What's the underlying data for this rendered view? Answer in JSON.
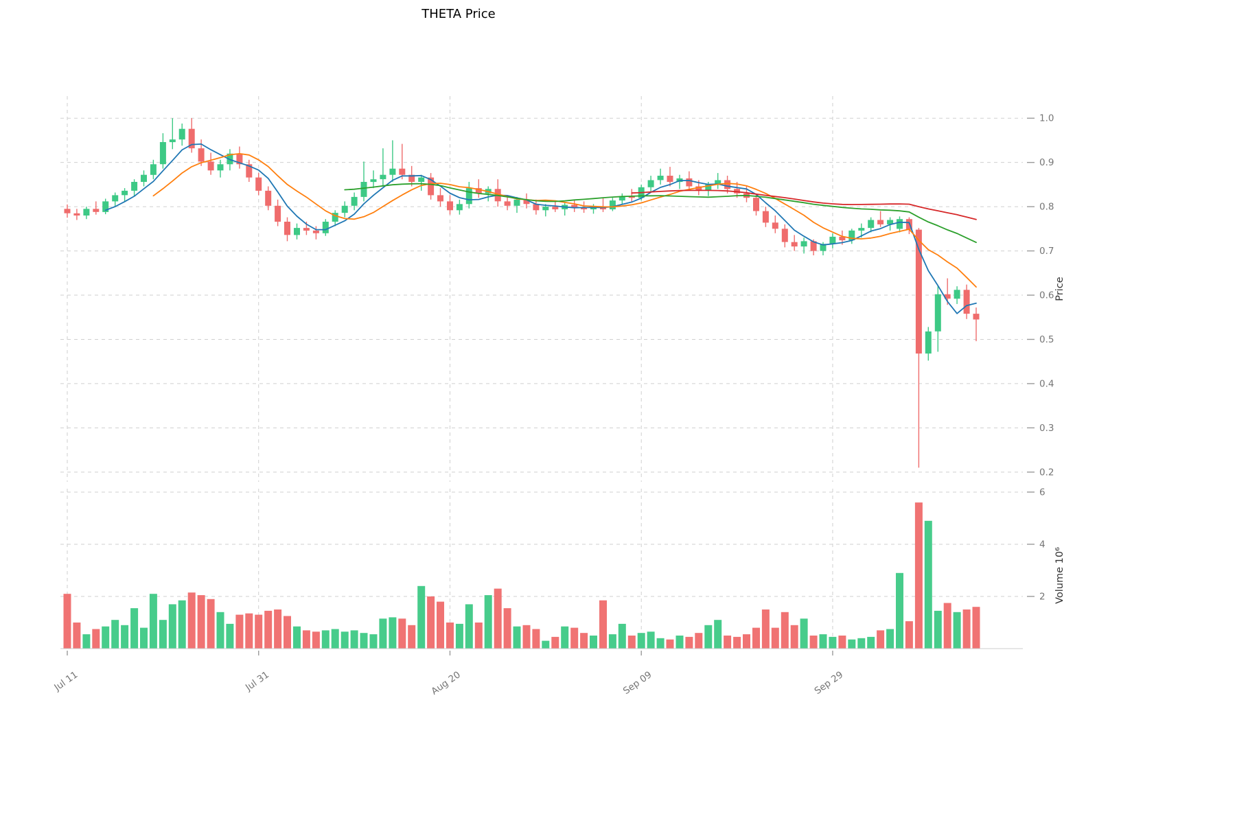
{
  "title": "THETA Price",
  "colors": {
    "up": "#3dc985",
    "down": "#ef6c6c",
    "grid": "#cfcfcf",
    "tick_text": "#757575",
    "tick_mark": "#9a9a9a",
    "axis_text": "#333333",
    "background": "#ffffff",
    "ma_blue": "#1f77b4",
    "ma_orange": "#ff7f0e",
    "ma_green": "#2ca02c",
    "ma_red": "#d62728"
  },
  "axes": {
    "price_label": "Price",
    "volume_label": "Volume",
    "volume_scale_label": "10⁶",
    "price_ticks": [
      "1.0",
      "0.9",
      "0.8",
      "0.7",
      "0.6",
      "0.5",
      "0.4",
      "0.3",
      "0.2"
    ],
    "volume_ticks": [
      "6",
      "4",
      "2"
    ]
  },
  "x_ticks": [
    {
      "index": 0,
      "label": "Jul 11"
    },
    {
      "index": 20,
      "label": "Jul 31"
    },
    {
      "index": 40,
      "label": "Aug 20"
    },
    {
      "index": 60,
      "label": "Sep 09"
    },
    {
      "index": 80,
      "label": "Sep 29"
    }
  ],
  "chart_data": {
    "type": "candlestick_with_volume",
    "title": "THETA Price",
    "price_axis_range": [
      0.178,
      1.05
    ],
    "volume_axis_range": [
      0,
      6.13
    ],
    "volume_unit_label": "10⁶",
    "moving_averages": [
      {
        "name": "SMA5",
        "window": 5,
        "color": "#1f77b4"
      },
      {
        "name": "SMA10",
        "window": 10,
        "color": "#ff7f0e"
      },
      {
        "name": "SMA30",
        "window": 30,
        "color": "#2ca02c"
      },
      {
        "name": "SMA60",
        "window": 60,
        "color": "#d62728"
      }
    ],
    "candles": {
      "fields": [
        "open",
        "high",
        "low",
        "close",
        "volume_millions"
      ],
      "rows": [
        [
          0.795,
          0.805,
          0.775,
          0.785,
          2.1
        ],
        [
          0.785,
          0.795,
          0.77,
          0.78,
          1.0
        ],
        [
          0.78,
          0.8,
          0.772,
          0.795,
          0.55
        ],
        [
          0.795,
          0.812,
          0.782,
          0.788,
          0.75
        ],
        [
          0.788,
          0.818,
          0.783,
          0.812,
          0.85
        ],
        [
          0.812,
          0.832,
          0.8,
          0.826,
          1.1
        ],
        [
          0.826,
          0.842,
          0.812,
          0.836,
          0.9
        ],
        [
          0.836,
          0.862,
          0.824,
          0.856,
          1.55
        ],
        [
          0.856,
          0.882,
          0.846,
          0.872,
          0.8
        ],
        [
          0.872,
          0.906,
          0.862,
          0.896,
          2.1
        ],
        [
          0.896,
          0.966,
          0.886,
          0.946,
          1.1
        ],
        [
          0.946,
          1.0,
          0.93,
          0.952,
          1.7
        ],
        [
          0.952,
          0.988,
          0.938,
          0.976,
          1.85
        ],
        [
          0.976,
          1.0,
          0.922,
          0.932,
          2.15
        ],
        [
          0.932,
          0.952,
          0.892,
          0.902,
          2.05
        ],
        [
          0.902,
          0.922,
          0.872,
          0.882,
          1.9
        ],
        [
          0.882,
          0.906,
          0.866,
          0.896,
          1.4
        ],
        [
          0.896,
          0.93,
          0.882,
          0.92,
          0.95
        ],
        [
          0.92,
          0.936,
          0.886,
          0.896,
          1.3
        ],
        [
          0.896,
          0.906,
          0.856,
          0.866,
          1.35
        ],
        [
          0.866,
          0.876,
          0.826,
          0.836,
          1.3
        ],
        [
          0.836,
          0.846,
          0.792,
          0.802,
          1.45
        ],
        [
          0.802,
          0.816,
          0.756,
          0.766,
          1.5
        ],
        [
          0.766,
          0.776,
          0.722,
          0.736,
          1.25
        ],
        [
          0.736,
          0.762,
          0.726,
          0.752,
          0.85
        ],
        [
          0.752,
          0.766,
          0.736,
          0.746,
          0.7
        ],
        [
          0.746,
          0.756,
          0.726,
          0.74,
          0.65
        ],
        [
          0.74,
          0.772,
          0.734,
          0.766,
          0.7
        ],
        [
          0.766,
          0.792,
          0.756,
          0.786,
          0.75
        ],
        [
          0.786,
          0.812,
          0.776,
          0.802,
          0.65
        ],
        [
          0.802,
          0.832,
          0.792,
          0.822,
          0.7
        ],
        [
          0.822,
          0.902,
          0.812,
          0.856,
          0.6
        ],
        [
          0.856,
          0.882,
          0.842,
          0.862,
          0.55
        ],
        [
          0.862,
          0.932,
          0.846,
          0.872,
          1.15
        ],
        [
          0.872,
          0.95,
          0.856,
          0.886,
          1.2
        ],
        [
          0.886,
          0.942,
          0.862,
          0.872,
          1.15
        ],
        [
          0.872,
          0.892,
          0.846,
          0.856,
          0.9
        ],
        [
          0.856,
          0.872,
          0.836,
          0.866,
          2.4
        ],
        [
          0.866,
          0.876,
          0.816,
          0.826,
          2.0
        ],
        [
          0.826,
          0.842,
          0.8,
          0.812,
          1.8
        ],
        [
          0.812,
          0.826,
          0.782,
          0.792,
          1.0
        ],
        [
          0.792,
          0.816,
          0.782,
          0.806,
          0.95
        ],
        [
          0.806,
          0.856,
          0.796,
          0.842,
          1.7
        ],
        [
          0.842,
          0.862,
          0.82,
          0.83,
          1.0
        ],
        [
          0.83,
          0.846,
          0.812,
          0.84,
          2.05
        ],
        [
          0.84,
          0.862,
          0.8,
          0.812,
          2.3
        ],
        [
          0.812,
          0.826,
          0.792,
          0.802,
          1.55
        ],
        [
          0.802,
          0.822,
          0.786,
          0.816,
          0.85
        ],
        [
          0.816,
          0.83,
          0.796,
          0.806,
          0.9
        ],
        [
          0.806,
          0.816,
          0.782,
          0.792,
          0.75
        ],
        [
          0.792,
          0.806,
          0.778,
          0.8,
          0.3
        ],
        [
          0.8,
          0.814,
          0.788,
          0.794,
          0.45
        ],
        [
          0.794,
          0.81,
          0.78,
          0.804,
          0.85
        ],
        [
          0.804,
          0.814,
          0.788,
          0.798,
          0.8
        ],
        [
          0.798,
          0.812,
          0.786,
          0.794,
          0.6
        ],
        [
          0.794,
          0.806,
          0.784,
          0.8,
          0.5
        ],
        [
          0.8,
          0.82,
          0.788,
          0.794,
          1.85
        ],
        [
          0.794,
          0.82,
          0.79,
          0.814,
          0.55
        ],
        [
          0.814,
          0.83,
          0.804,
          0.824,
          0.95
        ],
        [
          0.824,
          0.84,
          0.81,
          0.82,
          0.5
        ],
        [
          0.82,
          0.85,
          0.814,
          0.844,
          0.6
        ],
        [
          0.844,
          0.87,
          0.834,
          0.86,
          0.65
        ],
        [
          0.86,
          0.886,
          0.85,
          0.87,
          0.4
        ],
        [
          0.87,
          0.89,
          0.846,
          0.856,
          0.35
        ],
        [
          0.856,
          0.872,
          0.84,
          0.864,
          0.5
        ],
        [
          0.864,
          0.88,
          0.836,
          0.846,
          0.45
        ],
        [
          0.846,
          0.86,
          0.826,
          0.836,
          0.6
        ],
        [
          0.836,
          0.856,
          0.824,
          0.85,
          0.9
        ],
        [
          0.85,
          0.876,
          0.84,
          0.86,
          1.1
        ],
        [
          0.86,
          0.87,
          0.83,
          0.84,
          0.5
        ],
        [
          0.84,
          0.856,
          0.82,
          0.83,
          0.45
        ],
        [
          0.83,
          0.846,
          0.81,
          0.82,
          0.55
        ],
        [
          0.82,
          0.83,
          0.78,
          0.79,
          0.8
        ],
        [
          0.79,
          0.8,
          0.754,
          0.764,
          1.5
        ],
        [
          0.764,
          0.78,
          0.74,
          0.75,
          0.8
        ],
        [
          0.75,
          0.76,
          0.708,
          0.72,
          1.4
        ],
        [
          0.72,
          0.736,
          0.7,
          0.71,
          0.9
        ],
        [
          0.71,
          0.73,
          0.694,
          0.722,
          1.15
        ],
        [
          0.722,
          0.726,
          0.69,
          0.7,
          0.5
        ],
        [
          0.7,
          0.72,
          0.69,
          0.716,
          0.55
        ],
        [
          0.716,
          0.74,
          0.706,
          0.732,
          0.45
        ],
        [
          0.732,
          0.746,
          0.714,
          0.724,
          0.5
        ],
        [
          0.724,
          0.75,
          0.716,
          0.746,
          0.35
        ],
        [
          0.746,
          0.762,
          0.73,
          0.752,
          0.4
        ],
        [
          0.752,
          0.776,
          0.742,
          0.77,
          0.45
        ],
        [
          0.77,
          0.79,
          0.754,
          0.76,
          0.7
        ],
        [
          0.76,
          0.776,
          0.746,
          0.77,
          0.75
        ],
        [
          0.75,
          0.778,
          0.742,
          0.772,
          2.9
        ],
        [
          0.772,
          0.776,
          0.738,
          0.748,
          1.05
        ],
        [
          0.748,
          0.752,
          0.21,
          0.468,
          5.6
        ],
        [
          0.468,
          0.528,
          0.452,
          0.518,
          4.9
        ],
        [
          0.518,
          0.622,
          0.472,
          0.602,
          1.45
        ],
        [
          0.602,
          0.638,
          0.578,
          0.592,
          1.75
        ],
        [
          0.592,
          0.62,
          0.58,
          0.612,
          1.4
        ],
        [
          0.612,
          0.624,
          0.546,
          0.558,
          1.5
        ],
        [
          0.558,
          0.572,
          0.496,
          0.545,
          1.6
        ]
      ]
    }
  }
}
